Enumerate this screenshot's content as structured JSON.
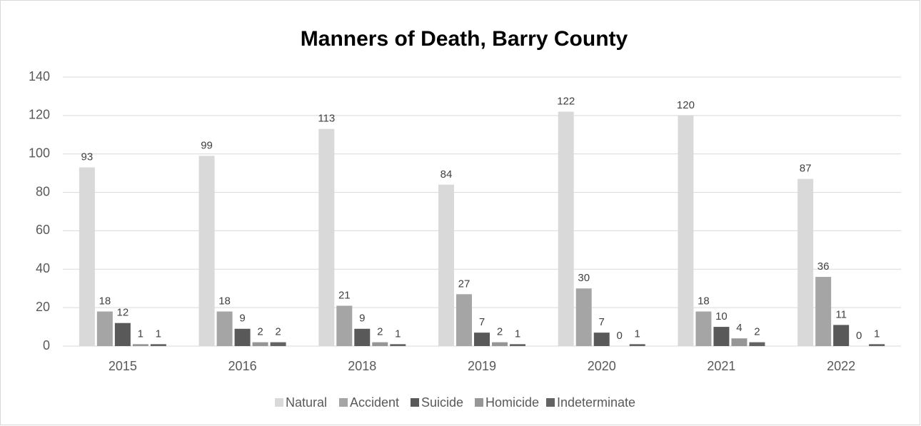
{
  "chart_data": {
    "type": "bar",
    "title": "Manners of Death, Barry County",
    "categories": [
      "2015",
      "2016",
      "2018",
      "2019",
      "2020",
      "2021",
      "2022"
    ],
    "series": [
      {
        "name": "Natural",
        "color": "#d9d9d9",
        "values": [
          93,
          99,
          113,
          84,
          122,
          120,
          87
        ]
      },
      {
        "name": "Accident",
        "color": "#a5a5a5",
        "values": [
          18,
          18,
          21,
          27,
          30,
          18,
          36
        ]
      },
      {
        "name": "Suicide",
        "color": "#595959",
        "values": [
          12,
          9,
          9,
          7,
          7,
          10,
          11
        ]
      },
      {
        "name": "Homicide",
        "color": "#969696",
        "values": [
          1,
          2,
          2,
          2,
          0,
          4,
          0
        ]
      },
      {
        "name": "Indeterminate",
        "color": "#636363",
        "values": [
          1,
          2,
          1,
          1,
          1,
          2,
          1
        ]
      }
    ],
    "ylim": [
      0,
      140
    ],
    "yticks": [
      0,
      20,
      40,
      60,
      80,
      100,
      120,
      140
    ],
    "grid": true,
    "legend": "bottom"
  }
}
